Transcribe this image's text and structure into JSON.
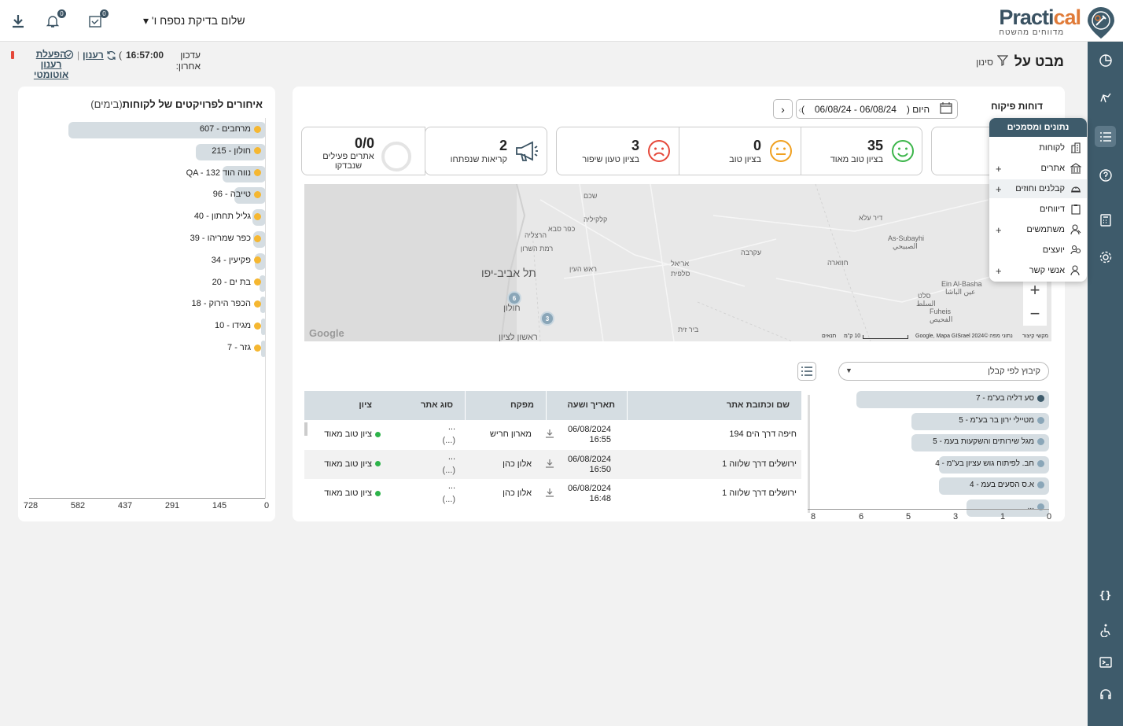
{
  "topbar": {
    "greeting": "שלום בדיקת נספח ו' ▾",
    "notifications_count": "0",
    "tasks_count": "0",
    "logo_name_a": "Practi",
    "logo_name_b": "cal",
    "logo_sub": "מדווחים מהשטח"
  },
  "header": {
    "title": "מבט על",
    "filter_label": "סינון",
    "last_update_label": "עדכון אחרון:",
    "last_update_time": "16:57:00",
    "refresh_label": "רענון",
    "auto_refresh_label": "הפעלת רענון אוטומטי",
    "paren_open": "(",
    "sep": "|"
  },
  "left_panel": {
    "title": "איחורים לפרויקטים של לקוחות",
    "title_sub": "(בימים)",
    "bar_color": "#d5dde2",
    "dot_color": "#f5b731",
    "items": [
      {
        "label": "מרחבים - 607",
        "value": 607
      },
      {
        "label": "חולון - 215",
        "value": 215
      },
      {
        "label": "נווה הוד QA - 132",
        "value": 132
      },
      {
        "label": "טייבה - 96",
        "value": 96
      },
      {
        "label": "גליל תחתון - 40",
        "value": 40
      },
      {
        "label": "כפר שמריהו - 39",
        "value": 39
      },
      {
        "label": "פקיעין - 34",
        "value": 34
      },
      {
        "label": "בת ים - 20",
        "value": 20
      },
      {
        "label": "הכפר הירוק - 18",
        "value": 18
      },
      {
        "label": "מגידו - 10",
        "value": 10
      },
      {
        "label": "גזר - 7",
        "value": 7
      }
    ],
    "axis_ticks": [
      "0",
      "145",
      "291",
      "437",
      "582",
      "728"
    ],
    "axis_max": 728
  },
  "reports": {
    "label": "דוחות פיקוח",
    "today_label": "היום (",
    "date_range": "06/08/24 - 06/08/24",
    "close_paren": ")"
  },
  "kpis": {
    "very_good_count": "35",
    "very_good_label": "בציון טוב מאוד",
    "good_count": "0",
    "good_label": "בציון טוב",
    "needs_improvement_count": "3",
    "needs_improvement_label": "בציון טעון שיפור",
    "calls_count": "2",
    "calls_label": "קריאות שנפתחו",
    "active_sites_count": "0/0",
    "active_sites_label_1": "אתרים פעילים",
    "active_sites_label_2": "שנבדקו",
    "colors": {
      "very_good": "#3cb54a",
      "good": "#f0a020",
      "bad": "#e5483a"
    }
  },
  "menu": {
    "header": "נתונים ומסמכים",
    "items": [
      {
        "label": "לקוחות",
        "plus": ""
      },
      {
        "label": "אתרים",
        "plus": "+"
      },
      {
        "label": "קבלנים וחוזים",
        "plus": "+"
      },
      {
        "label": "דיווחים",
        "plus": ""
      },
      {
        "label": "משתמשים",
        "plus": "+"
      },
      {
        "label": "יועצים",
        "plus": ""
      },
      {
        "label": "אנשי קשר",
        "plus": "+"
      }
    ]
  },
  "map": {
    "labels": [
      {
        "t": "תל אביב-יפו",
        "cls": "big"
      },
      {
        "t": "חולון"
      },
      {
        "t": "ראשון לציון"
      },
      {
        "t": "הרצליה"
      },
      {
        "t": "רמת השרון"
      },
      {
        "t": "כפר סבא"
      },
      {
        "t": "קלקיליה"
      },
      {
        "t": "ראש העין"
      },
      {
        "t": "אריאל"
      },
      {
        "t": "סלפית"
      },
      {
        "t": "שכם"
      },
      {
        "t": "עקרבה"
      },
      {
        "t": "חווארה"
      },
      {
        "t": "דיר עלא"
      },
      {
        "t": "As-Subayhi"
      },
      {
        "t": "الصبيحي"
      },
      {
        "t": "Ein Al-Basha"
      },
      {
        "t": "عين الباشا"
      },
      {
        "t": "סלט"
      },
      {
        "t": "السلط"
      },
      {
        "t": "Fuheis"
      },
      {
        "t": "الفحيص"
      },
      {
        "t": "ביר זית"
      },
      {
        "t": "Google"
      }
    ],
    "clusters": [
      "6",
      "3"
    ],
    "attribution": "נתוני מפה ©2024 Google, Mapa GISrael",
    "scale": "10 ק\"מ",
    "terms": "תנאים",
    "shortcuts": "מקשי קיצור"
  },
  "contractors": {
    "group_label": "קיבוץ לפי קבלן",
    "items": [
      {
        "label": "סע דליה בע\"מ - 7",
        "value": 7,
        "color": "#3e5b6b"
      },
      {
        "label": "מטיילי ירון בר בע\"מ - 5",
        "value": 5,
        "color": "#8aa6b8"
      },
      {
        "label": "מגל שירותים והשקעות בעמ - 5",
        "value": 5,
        "color": "#8aa6b8"
      },
      {
        "label": "חב. לפיתוח גוש עציון בע\"מ - 4",
        "value": 4,
        "color": "#8aa6b8"
      },
      {
        "label": "א.ס הסעים בעמ - 4",
        "value": 4,
        "color": "#8aa6b8"
      },
      {
        "label": "...",
        "value": 3,
        "color": "#8aa6b8"
      }
    ],
    "axis_ticks": [
      "0",
      "1",
      "3",
      "5",
      "6",
      "8"
    ],
    "axis_max": 8
  },
  "table": {
    "columns": [
      "שם וכתובת אתר",
      "תאריך ושעה",
      "מפקח",
      "סוג אתר",
      "ציון"
    ],
    "rows": [
      {
        "site": "חיפה דרך הים 194",
        "date": "06/08/2024",
        "time": "16:55",
        "inspector": "מארון חריש",
        "type_a": "...",
        "type_b": "(...)",
        "grade": "ציון טוב מאוד"
      },
      {
        "site": "ירושלים דרך שלווה 1",
        "date": "06/08/2024",
        "time": "16:50",
        "inspector": "אלון כהן",
        "type_a": "...",
        "type_b": "(...)",
        "grade": "ציון טוב מאוד"
      },
      {
        "site": "ירושלים דרך שלווה 1",
        "date": "06/08/2024",
        "time": "16:48",
        "inspector": "אלון כהן",
        "type_a": "...",
        "type_b": "(...)",
        "grade": "ציון טוב מאוד"
      }
    ]
  }
}
